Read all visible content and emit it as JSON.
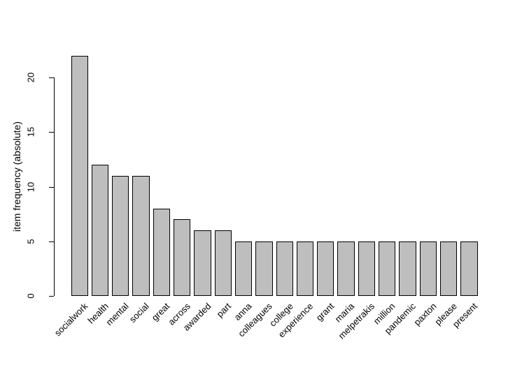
{
  "chart_data": {
    "type": "bar",
    "title": "",
    "xlabel": "",
    "ylabel": "item frequency (absolute)",
    "categories": [
      "socialwork",
      "health",
      "mental",
      "social",
      "great",
      "across",
      "awarded",
      "part",
      "anna",
      "colleagues",
      "college",
      "experience",
      "grant",
      "maria",
      "melpetrakis",
      "million",
      "pandemic",
      "paxton",
      "please",
      "present"
    ],
    "values": [
      22,
      12,
      11,
      11,
      8,
      7,
      6,
      6,
      5,
      5,
      5,
      5,
      5,
      5,
      5,
      5,
      5,
      5,
      5,
      5
    ],
    "yticks": [
      0,
      5,
      10,
      15,
      20
    ],
    "ylim": [
      0,
      22
    ],
    "grid": false,
    "legend": null,
    "bar_fill": "#bebebe",
    "bar_border": "#000000",
    "axis_color": "#000000",
    "background": "#ffffff"
  }
}
